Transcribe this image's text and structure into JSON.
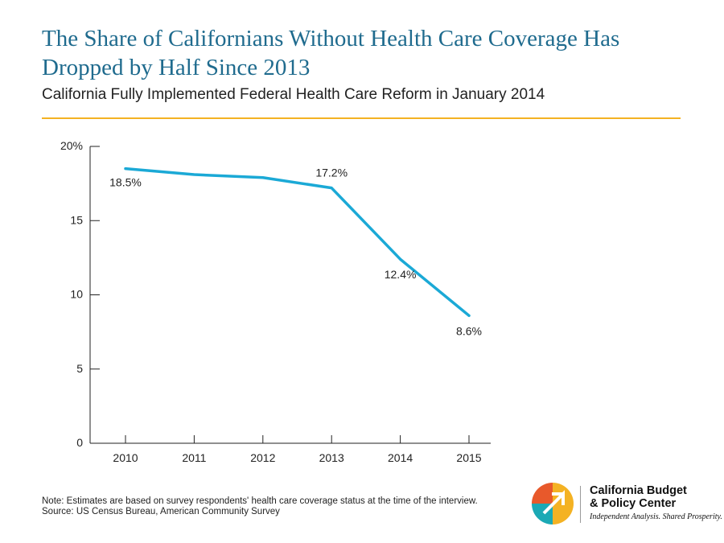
{
  "header": {
    "title": "The Share of Californians Without Health Care Coverage Has Dropped by Half Since 2013",
    "subtitle": "California Fully Implemented Federal Health Care Reform in January 2014"
  },
  "colors": {
    "title": "#1f6b8e",
    "line": "#1ba9d6",
    "rule": "#f4b223",
    "axis": "#222222",
    "logo_yellow": "#f4b223",
    "logo_orange": "#e8592b",
    "logo_teal": "#1ba9b5"
  },
  "chart_data": {
    "type": "line",
    "title": "",
    "xlabel": "",
    "ylabel": "",
    "categories": [
      "2010",
      "2011",
      "2012",
      "2013",
      "2014",
      "2015"
    ],
    "series": [
      {
        "values": [
          18.5,
          18.1,
          17.9,
          17.2,
          12.4,
          8.6
        ]
      }
    ],
    "data_labels": [
      {
        "category": "2010",
        "text": "18.5%"
      },
      {
        "category": "2013",
        "text": "17.2%"
      },
      {
        "category": "2014",
        "text": "12.4%"
      },
      {
        "category": "2015",
        "text": "8.6%"
      }
    ],
    "ylim": [
      0,
      20
    ],
    "y_ticks": [
      {
        "value": 0,
        "label": "0"
      },
      {
        "value": 5,
        "label": "5"
      },
      {
        "value": 10,
        "label": "10"
      },
      {
        "value": 15,
        "label": "15"
      },
      {
        "value": 20,
        "label": "20%"
      }
    ],
    "grid": false,
    "legend": "none"
  },
  "footer": {
    "note": "Note: Estimates are based on survey respondents' health care coverage status at the time of the interview.",
    "source": "Source: US Census Bureau, American Community Survey"
  },
  "logo": {
    "name_line1": "California Budget",
    "name_line2": "& Policy Center",
    "tagline": "Independent Analysis. Shared Prosperity."
  }
}
